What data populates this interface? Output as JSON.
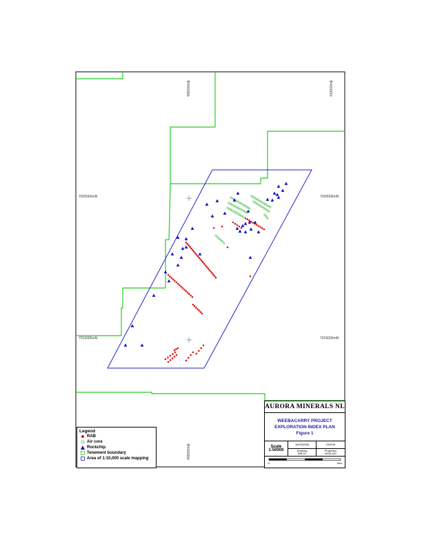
{
  "grid_labels": {
    "top_left_e": "405000mE",
    "top_right_e": "410000mE",
    "bottom_left_e": "405000mE",
    "left_n_upper": "7020000mN",
    "right_n_upper": "7020000mN",
    "left_n_lower": "7015000mN",
    "right_n_lower": "7015000mN"
  },
  "legend": {
    "title": "Legend",
    "items": [
      {
        "label": "RAB",
        "symbol": "red-dot-icon",
        "color": "#e01010"
      },
      {
        "label": "Air core",
        "symbol": "green-circle-icon",
        "color": "#44bb44"
      },
      {
        "label": "Rockchip",
        "symbol": "blue-triangle-icon",
        "color": "#1010c0"
      },
      {
        "label": "Tenement boundary",
        "symbol": "green-box-icon",
        "color": "#22cc22"
      },
      {
        "label": "Area of 1:10,000 scale mapping",
        "symbol": "blue-box-icon",
        "color": "#2020c0"
      }
    ]
  },
  "title_block": {
    "company": "AURORA MINERALS NL",
    "project": "WEEBACARRY PROJECT",
    "plan": "EXPLORATION INDEX PLAN",
    "figure": "Figure 1",
    "scale_label": "Scale",
    "scale_value": "1:50000",
    "date": "16/03/2006",
    "author": "GD/EM",
    "drawing_label": "Drawing",
    "drawing_value": "WB-01",
    "projection_label": "Projection",
    "projection_value": "MGA z50",
    "bar_start": "0",
    "bar_end": "2km"
  },
  "colors": {
    "frame": "#000000",
    "tenement": "#22cc22",
    "mapping_area": "#2020c0",
    "rab": "#e01010",
    "aircore": "#44bb44",
    "rockchip": "#1010c0"
  }
}
